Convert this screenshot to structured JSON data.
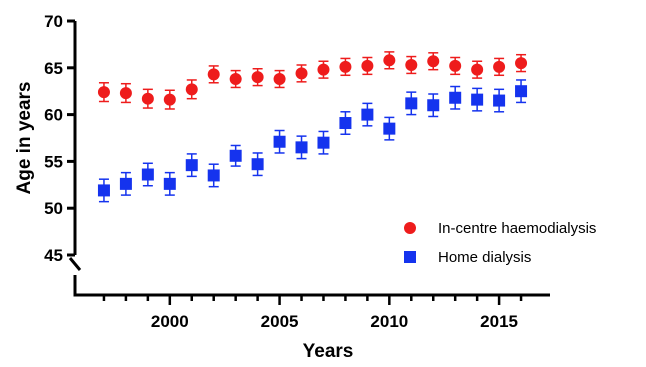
{
  "chart_data": {
    "type": "scatter",
    "title": "",
    "xlabel": "Years",
    "ylabel": "Age in years",
    "xlim": [
      1996,
      2017
    ],
    "ylim": [
      45,
      70
    ],
    "axis_break": "y-axis broken between 0 and 45",
    "x_ticks": [
      2000,
      2005,
      2010,
      2015
    ],
    "x_tick_labels": [
      "2000",
      "2005",
      "2010",
      "2015"
    ],
    "y_ticks": [
      45,
      50,
      55,
      60,
      65,
      70
    ],
    "y_tick_labels": [
      "45",
      "50",
      "55",
      "60",
      "65",
      "70"
    ],
    "grid": false,
    "legend_position": "bottom-right",
    "series": [
      {
        "name": "In-centre haemodialysis",
        "marker": "circle",
        "color": "#ee1c1c",
        "x": [
          1997,
          1998,
          1999,
          2000,
          2001,
          2002,
          2003,
          2004,
          2005,
          2006,
          2007,
          2008,
          2009,
          2010,
          2011,
          2012,
          2013,
          2014,
          2015,
          2016
        ],
        "values": [
          62.4,
          62.3,
          61.7,
          61.6,
          62.7,
          64.3,
          63.8,
          64.0,
          63.8,
          64.4,
          64.8,
          65.1,
          65.2,
          65.8,
          65.3,
          65.7,
          65.2,
          64.8,
          65.1,
          65.5
        ],
        "err_low": [
          61.4,
          61.3,
          60.7,
          60.6,
          61.7,
          63.4,
          62.9,
          63.1,
          62.9,
          63.5,
          63.9,
          64.2,
          64.3,
          64.9,
          64.4,
          64.8,
          64.3,
          63.9,
          64.2,
          64.6
        ],
        "err_high": [
          63.4,
          63.3,
          62.7,
          62.6,
          63.7,
          65.2,
          64.7,
          64.9,
          64.7,
          65.3,
          65.7,
          66.0,
          66.1,
          66.7,
          66.2,
          66.6,
          66.1,
          65.7,
          66.0,
          66.4
        ]
      },
      {
        "name": "Home dialysis",
        "marker": "square",
        "color": "#1533ee",
        "x": [
          1997,
          1998,
          1999,
          2000,
          2001,
          2002,
          2003,
          2004,
          2005,
          2006,
          2007,
          2008,
          2009,
          2010,
          2011,
          2012,
          2013,
          2014,
          2015,
          2016
        ],
        "values": [
          51.9,
          52.6,
          53.6,
          52.6,
          54.6,
          53.5,
          55.6,
          54.7,
          57.1,
          56.5,
          57.0,
          59.1,
          60.0,
          58.5,
          61.2,
          61.0,
          61.8,
          61.6,
          61.5,
          62.5
        ],
        "err_low": [
          50.7,
          51.4,
          52.4,
          51.4,
          53.4,
          52.3,
          54.5,
          53.5,
          55.9,
          55.3,
          55.8,
          57.9,
          58.8,
          57.3,
          60.0,
          59.8,
          60.6,
          60.4,
          60.3,
          61.3
        ],
        "err_high": [
          53.1,
          53.8,
          54.8,
          53.8,
          55.8,
          54.7,
          56.7,
          55.9,
          58.3,
          57.7,
          58.2,
          60.3,
          61.2,
          59.7,
          62.4,
          62.2,
          63.0,
          62.8,
          62.7,
          63.7
        ]
      }
    ]
  }
}
